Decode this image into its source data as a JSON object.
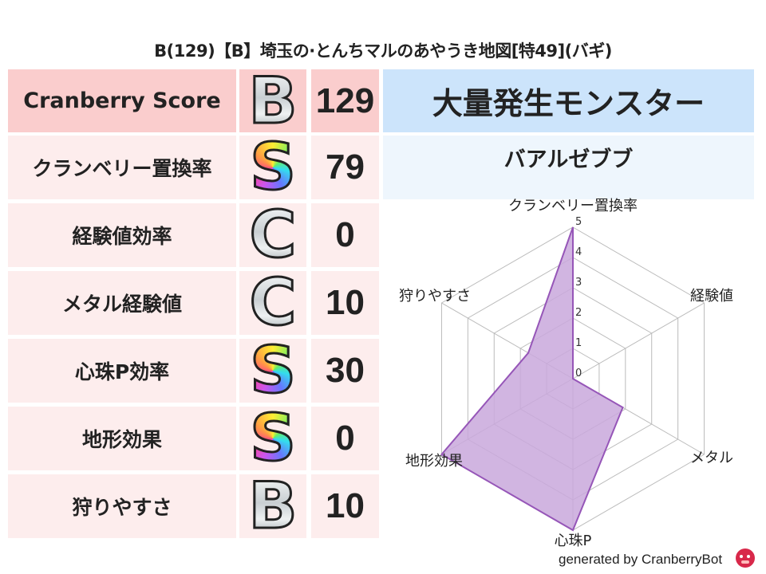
{
  "title": "B(129)【B】埼玉の·とんちマルのあやうき地図[特49](バギ)",
  "score_table": {
    "header": {
      "label": "Cranberry Score",
      "grade": "B",
      "grade_style": "silver",
      "value": "129"
    },
    "rows": [
      {
        "label": "クランベリー置換率",
        "grade": "S",
        "grade_style": "rainbow",
        "value": "79"
      },
      {
        "label": "経験値効率",
        "grade": "C",
        "grade_style": "silver",
        "value": "0"
      },
      {
        "label": "メタル経験値",
        "grade": "C",
        "grade_style": "silver",
        "value": "10"
      },
      {
        "label": "心珠P効率",
        "grade": "S",
        "grade_style": "rainbow",
        "value": "30"
      },
      {
        "label": "地形効果",
        "grade": "S",
        "grade_style": "rainbow",
        "value": "0"
      },
      {
        "label": "狩りやすさ",
        "grade": "B",
        "grade_style": "silver",
        "value": "10"
      }
    ]
  },
  "monster": {
    "header": "大量発生モンスター",
    "name": "バアルゼブブ"
  },
  "chart_data": {
    "type": "radar",
    "categories": [
      "クランベリー置換率",
      "経験値",
      "メタル",
      "心珠P",
      "地形効果",
      "狩りやすさ"
    ],
    "values": [
      5,
      0,
      1.9,
      5,
      5,
      1.7
    ],
    "rlim": [
      0,
      5
    ],
    "ticks": [
      "0",
      "1",
      "2",
      "3",
      "4",
      "5"
    ],
    "grid": true,
    "fill_color": "#c9a8dc",
    "line_color": "#9656b8"
  },
  "footer": {
    "text": "generated by CranberryBot"
  },
  "colors": {
    "header_pink": "#facdcd",
    "row_pink": "#fdeded",
    "header_blue": "#cce4fb",
    "row_blue": "#eef6fd"
  }
}
